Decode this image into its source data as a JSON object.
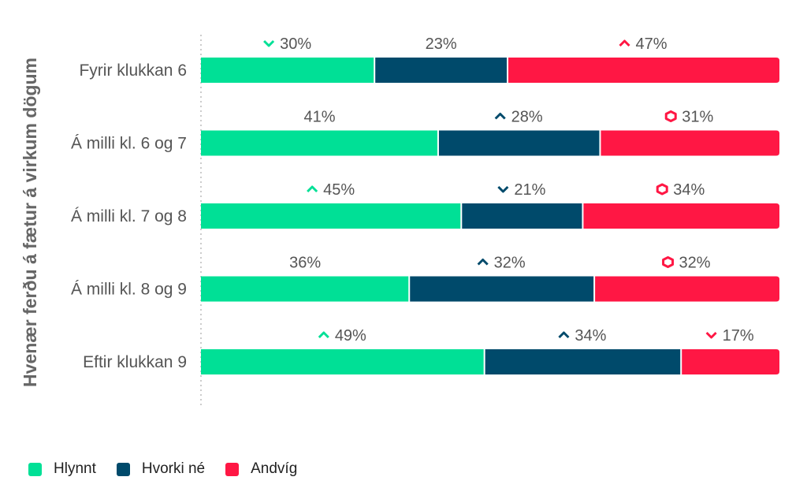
{
  "chart_data": {
    "type": "bar",
    "orientation": "horizontal",
    "stacked": true,
    "normalized": true,
    "ylabel": "Hvenær ferðu á fætur á virkum dögum",
    "categories": [
      "Fyrir klukkan 6",
      "Á milli kl. 6 og 7",
      "Á milli kl. 7 og 8",
      "Á milli kl. 8 og 9",
      "Eftir klukkan 9"
    ],
    "series": [
      {
        "name": "Hlynnt",
        "color": "#00e096",
        "values": [
          30,
          41,
          45,
          36,
          49
        ],
        "labels": [
          "30%",
          "41%",
          "45%",
          "36%",
          "49%"
        ],
        "indicators": [
          "down",
          "none",
          "up",
          "none",
          "up"
        ]
      },
      {
        "name": "Hvorki né",
        "color": "#004a6b",
        "values": [
          23,
          28,
          21,
          32,
          34
        ],
        "labels": [
          "23%",
          "28%",
          "21%",
          "32%",
          "34%"
        ],
        "indicators": [
          "none",
          "up",
          "down",
          "up",
          "up"
        ]
      },
      {
        "name": "Andvíg",
        "color": "#ff1744",
        "values": [
          47,
          31,
          34,
          32,
          17
        ],
        "labels": [
          "47%",
          "31%",
          "34%",
          "32%",
          "17%"
        ],
        "indicators": [
          "up",
          "neutral",
          "neutral",
          "neutral",
          "down"
        ]
      }
    ],
    "legend_position": "bottom-left"
  },
  "legend": {
    "items": [
      {
        "label": "Hlynnt",
        "color": "#00e096"
      },
      {
        "label": "Hvorki né",
        "color": "#004a6b"
      },
      {
        "label": "Andvíg",
        "color": "#ff1744"
      }
    ]
  }
}
